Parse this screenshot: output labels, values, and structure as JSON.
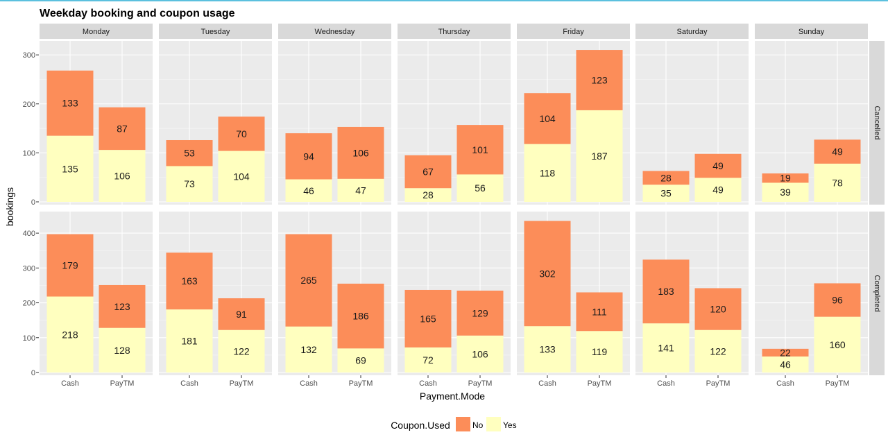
{
  "chart_data": {
    "type": "bar",
    "title": "Weekday booking and coupon usage",
    "xlabel": "Payment.Mode",
    "ylabel": "bookings",
    "facet_columns": [
      "Monday",
      "Tuesday",
      "Wednesday",
      "Thursday",
      "Friday",
      "Saturday",
      "Sunday"
    ],
    "facet_rows": [
      "Cancelled",
      "Completed"
    ],
    "categories": [
      "Cash",
      "PayTM"
    ],
    "stack_order": [
      "Yes",
      "No"
    ],
    "legend": {
      "title": "Coupon.Used",
      "position": "bottom",
      "items": [
        {
          "label": "No",
          "color": "#fc8d59"
        },
        {
          "label": "Yes",
          "color": "#ffffbf"
        }
      ]
    },
    "panels": {
      "Cancelled": {
        "ylim": [
          0,
          320
        ],
        "yticks": [
          0,
          100,
          200,
          300
        ],
        "series": {
          "Yes": [
            [
              135,
              106
            ],
            [
              73,
              104
            ],
            [
              46,
              47
            ],
            [
              28,
              56
            ],
            [
              118,
              187
            ],
            [
              35,
              49
            ],
            [
              39,
              78
            ]
          ],
          "No": [
            [
              133,
              87
            ],
            [
              53,
              70
            ],
            [
              94,
              106
            ],
            [
              67,
              101
            ],
            [
              104,
              123
            ],
            [
              28,
              49
            ],
            [
              19,
              49
            ]
          ]
        }
      },
      "Completed": {
        "ylim": [
          0,
          450
        ],
        "yticks": [
          0,
          100,
          200,
          300,
          400
        ],
        "series": {
          "Yes": [
            [
              218,
              128
            ],
            [
              181,
              122
            ],
            [
              132,
              69
            ],
            [
              72,
              106
            ],
            [
              133,
              119
            ],
            [
              141,
              122
            ],
            [
              46,
              160
            ]
          ],
          "No": [
            [
              179,
              123
            ],
            [
              163,
              91
            ],
            [
              265,
              186
            ],
            [
              165,
              129
            ],
            [
              302,
              111
            ],
            [
              183,
              120
            ],
            [
              22,
              96
            ]
          ]
        }
      }
    }
  }
}
